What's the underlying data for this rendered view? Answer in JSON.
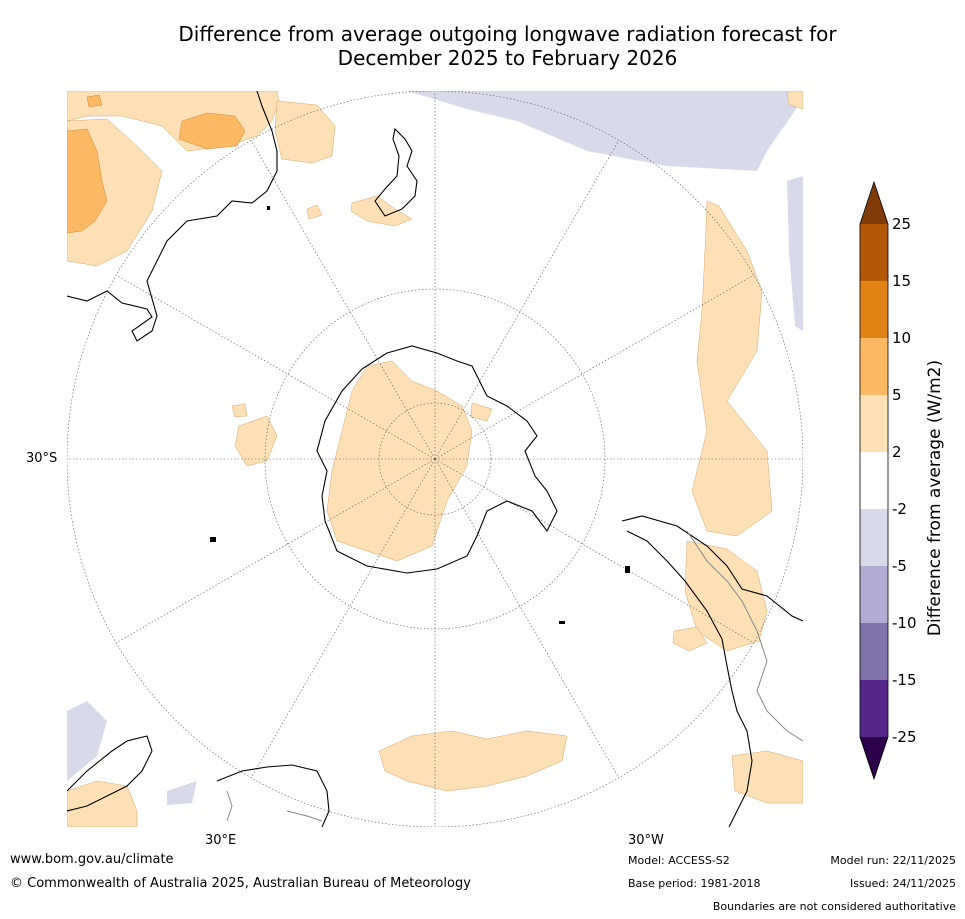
{
  "title_line1": "Difference from average outgoing longwave radiation forecast for",
  "title_line2": "December 2025 to February 2026",
  "map_labels": {
    "lat": "30°S",
    "lon_left": "30°E",
    "lon_right": "30°W"
  },
  "colorbar": {
    "title": "Difference from average (W/m2)",
    "ticks": [
      "25",
      "15",
      "10",
      "5",
      "2",
      "-2",
      "-5",
      "-10",
      "-15",
      "-25"
    ],
    "colors": {
      "gt25": "#7f3b08",
      "15_25": "#b35806",
      "10_15": "#e08214",
      "5_10": "#fdb863",
      "2_5": "#fee0b6",
      "m2_2": "#ffffff",
      "m5_m2": "#d8daeb",
      "m10_m5": "#b2abd2",
      "m15_m10": "#8073ac",
      "m25_m15": "#542788",
      "lt_m25": "#2d004b"
    }
  },
  "footer": {
    "website": "www.bom.gov.au/climate",
    "copyright": "© Commonwealth of Australia 2025, Australian Bureau of Meteorology",
    "model": "Model: ACCESS-S2",
    "base_period": "Base period: 1981-2018",
    "model_run": "Model run: 22/11/2025",
    "issued": "Issued: 24/11/2025",
    "disclaimer": "Boundaries are not considered authoritative"
  }
}
